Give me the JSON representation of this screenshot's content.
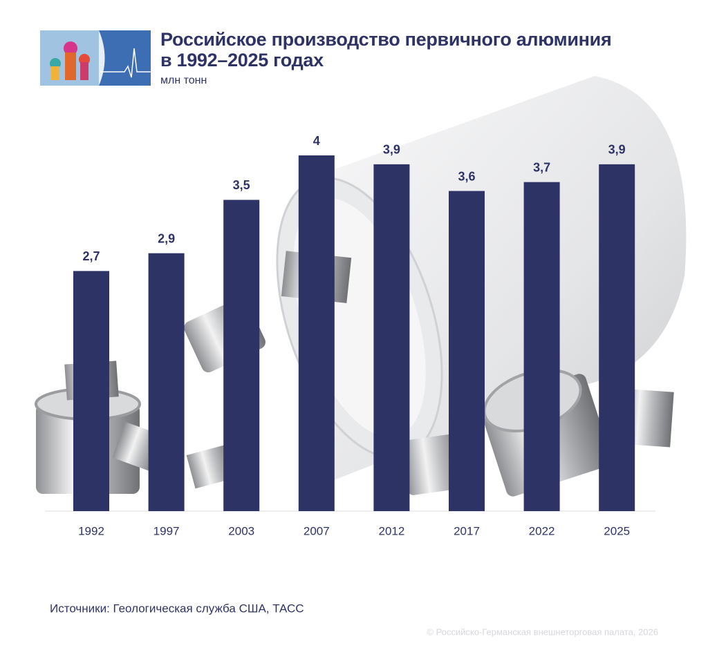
{
  "chart_data": {
    "type": "bar",
    "title": "Российское производство первичного алюминия в 1992–2025 годах",
    "subtitle": "млн тонн",
    "categories": [
      "1992",
      "1997",
      "2003",
      "2007",
      "2012",
      "2017",
      "2022",
      "2025"
    ],
    "values": [
      2.7,
      2.9,
      3.5,
      4,
      3.9,
      3.6,
      3.7,
      3.9
    ],
    "value_labels": [
      "2,7",
      "2,9",
      "3,5",
      "4",
      "3,9",
      "3,6",
      "3,7",
      "3,9"
    ],
    "color": "#2e3366",
    "source": "Источники: Геологическая служба США, ТАСС",
    "copyright": "© Российско-Германская внешнеторговая палата, 2026"
  }
}
